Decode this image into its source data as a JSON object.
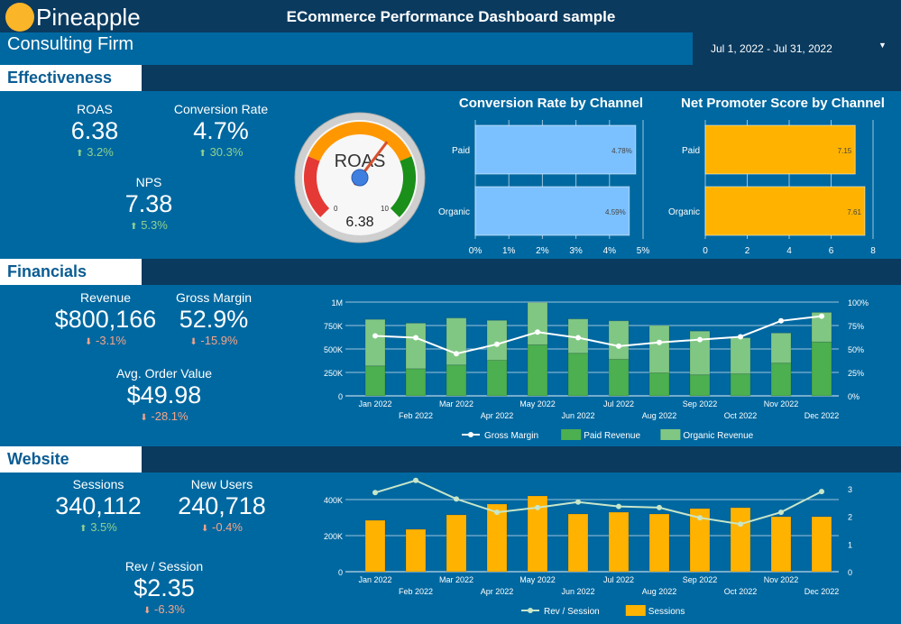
{
  "header": {
    "logo_line1": "Pineapple",
    "logo_line2": "Consulting Firm",
    "title": "ECommerce Performance Dashboard sample",
    "date_range": "Jul 1, 2022 - Jul 31, 2022"
  },
  "colors": {
    "dark": "#0a3a5e",
    "band": "#0068a0",
    "paid": "#4caf50",
    "organic": "#81c784",
    "sessions": "#ffb300",
    "conv_bar": "#7cc1ff",
    "nps_bar": "#ffb300",
    "up": "#8fd18f",
    "down": "#f4a58a"
  },
  "effectiveness": {
    "title": "Effectiveness",
    "kpis": [
      {
        "label": "ROAS",
        "value": "6.38",
        "delta": "3.2%",
        "dir": "up"
      },
      {
        "label": "Conversion Rate",
        "value": "4.7%",
        "delta": "30.3%",
        "dir": "up"
      },
      {
        "label": "NPS",
        "value": "7.38",
        "delta": "5.3%",
        "dir": "up"
      }
    ],
    "gauge": {
      "label": "ROAS",
      "value": 6.38,
      "value_text": "6.38",
      "min_label": "0",
      "max_label": "10",
      "min": 0,
      "max": 10
    }
  },
  "financials": {
    "title": "Financials",
    "kpis": [
      {
        "label": "Revenue",
        "value": "$800,166",
        "delta": "-3.1%",
        "dir": "down"
      },
      {
        "label": "Gross Margin",
        "value": "52.9%",
        "delta": "-15.9%",
        "dir": "down"
      },
      {
        "label": "Avg. Order Value",
        "value": "$49.98",
        "delta": "-28.1%",
        "dir": "down"
      }
    ]
  },
  "website": {
    "title": "Website",
    "kpis": [
      {
        "label": "Sessions",
        "value": "340,112",
        "delta": "3.5%",
        "dir": "up"
      },
      {
        "label": "New Users",
        "value": "240,718",
        "delta": "-0.4%",
        "dir": "down"
      },
      {
        "label": "Rev / Session",
        "value": "$2.35",
        "delta": "-6.3%",
        "dir": "down"
      }
    ]
  },
  "chart_data": [
    {
      "type": "bar",
      "orientation": "horizontal",
      "title": "Conversion Rate by Channel",
      "categories": [
        "Paid",
        "Organic"
      ],
      "values": [
        4.78,
        4.59
      ],
      "data_labels": [
        "4.78%",
        "4.59%"
      ],
      "xlim": [
        0,
        5
      ],
      "ticks": [
        "0%",
        "1%",
        "2%",
        "3%",
        "4%",
        "5%"
      ]
    },
    {
      "type": "bar",
      "orientation": "horizontal",
      "title": "Net Promoter Score by Channel",
      "categories": [
        "Paid",
        "Organic"
      ],
      "values": [
        7.15,
        7.61
      ],
      "data_labels": [
        "7.15",
        "7.61"
      ],
      "xlim": [
        0,
        8
      ],
      "ticks": [
        "0",
        "2",
        "4",
        "6",
        "8"
      ]
    },
    {
      "type": "bar",
      "stacked": true,
      "categories": [
        "Jan 2022",
        "Feb 2022",
        "Mar 2022",
        "Apr 2022",
        "May 2022",
        "Jun 2022",
        "Jul 2022",
        "Aug 2022",
        "Sep 2022",
        "Oct 2022",
        "Nov 2022",
        "Dec 2022"
      ],
      "series": [
        {
          "name": "Paid Revenue",
          "values": [
            320000,
            290000,
            330000,
            380000,
            545000,
            455000,
            390000,
            245000,
            225000,
            235000,
            350000,
            575000
          ]
        },
        {
          "name": "Organic Revenue",
          "values": [
            495000,
            485000,
            500000,
            425000,
            450000,
            365000,
            410000,
            505000,
            465000,
            385000,
            320000,
            315000
          ]
        },
        {
          "name": "Gross Margin",
          "type": "line",
          "axis": "right",
          "values": [
            64,
            62,
            45,
            55,
            68,
            62,
            53,
            57,
            60,
            63,
            80,
            85
          ]
        }
      ],
      "ylim": [
        0,
        1000000
      ],
      "yticks": [
        "0",
        "250K",
        "500K",
        "750K",
        "1M"
      ],
      "y2lim": [
        0,
        100
      ],
      "y2ticks": [
        "0%",
        "25%",
        "50%",
        "75%",
        "100%"
      ],
      "legend": "bottom"
    },
    {
      "type": "bar",
      "categories": [
        "Jan 2022",
        "Feb 2022",
        "Mar 2022",
        "Apr 2022",
        "May 2022",
        "Jun 2022",
        "Jul 2022",
        "Aug 2022",
        "Sep 2022",
        "Oct 2022",
        "Nov 2022",
        "Dec 2022"
      ],
      "series": [
        {
          "name": "Sessions",
          "values": [
            285000,
            235000,
            315000,
            375000,
            420000,
            320000,
            330000,
            320000,
            350000,
            355000,
            305000,
            305000
          ]
        },
        {
          "name": "Rev / Session",
          "type": "line",
          "axis": "right",
          "values": [
            2.86,
            3.3,
            2.63,
            2.15,
            2.32,
            2.52,
            2.36,
            2.32,
            1.95,
            1.72,
            2.15,
            2.9
          ]
        }
      ],
      "ylim": [
        0,
        460000
      ],
      "yticks": [
        "0",
        "200K",
        "400K"
      ],
      "y2lim": [
        0,
        3
      ],
      "y2ticks": [
        "0",
        "1",
        "2",
        "3"
      ],
      "legend": "bottom"
    }
  ]
}
